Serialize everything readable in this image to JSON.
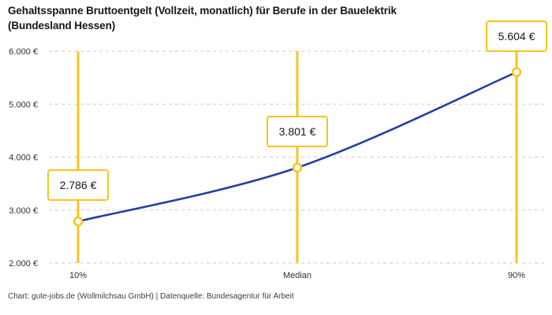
{
  "header": {
    "title_lines": [
      "Gehaltsspanne Bruttoentgelt (Vollzeit, monatlich) für Berufe in der Bauelektrik",
      "(Bundesland Hessen)"
    ]
  },
  "footer": {
    "text": "Chart: gute-jobs.de (Wollmilchsau GmbH) | Datenquelle: Bundesagentur für Arbeit"
  },
  "chart_data": {
    "type": "line",
    "title": "Gehaltsspanne Bruttoentgelt (Vollzeit, monatlich) für Berufe in der Bauelektrik (Bundesland Hessen)",
    "categories": [
      "10%",
      "Median",
      "90%"
    ],
    "values": [
      2786,
      3801,
      5604
    ],
    "value_labels": [
      "2.786 €",
      "3.801 €",
      "5.604 €"
    ],
    "ylim": [
      2000,
      6000
    ],
    "yticks": [
      2000,
      3000,
      4000,
      5000,
      6000
    ],
    "ytick_labels": [
      "2.000 €",
      "3.000 €",
      "4.000 €",
      "5.000 €",
      "6.000 €"
    ],
    "xlabel": "",
    "ylabel": "",
    "grid": "horizontal-dashed",
    "legend": "none",
    "colors": {
      "line": "#2340A0",
      "accent": "#F7C41E",
      "grid": "#CBCBCB",
      "tick_text": "#2F2F2F",
      "label_text": "#1A1A1A"
    }
  }
}
